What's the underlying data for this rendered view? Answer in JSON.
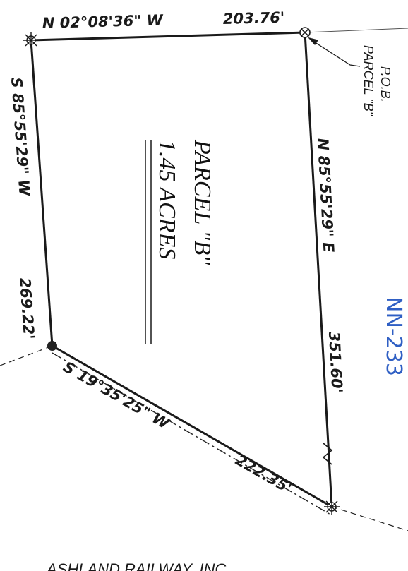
{
  "parcel": {
    "name": "PARCEL \"B\"",
    "area": "1.45 ACRES"
  },
  "calls": {
    "north": "N 02°08'36\" W",
    "north_dist": "203.76'",
    "west": "S 85°55'29\" W",
    "west_dist": "269.22'",
    "east": "N 85°55'29\" E",
    "east_dist": "351.60'",
    "south": "S 19°35'25\" W",
    "south_dist": "222.35'"
  },
  "pob": {
    "line1": "P.O.B.",
    "line2": "PARCEL \"B\""
  },
  "handwritten_id": "NN-233",
  "bottom_label": "ASHLAND RAILWAY, INC.",
  "colors": {
    "line": "#1a1a1a",
    "handwriting": "#2f5fc4"
  }
}
